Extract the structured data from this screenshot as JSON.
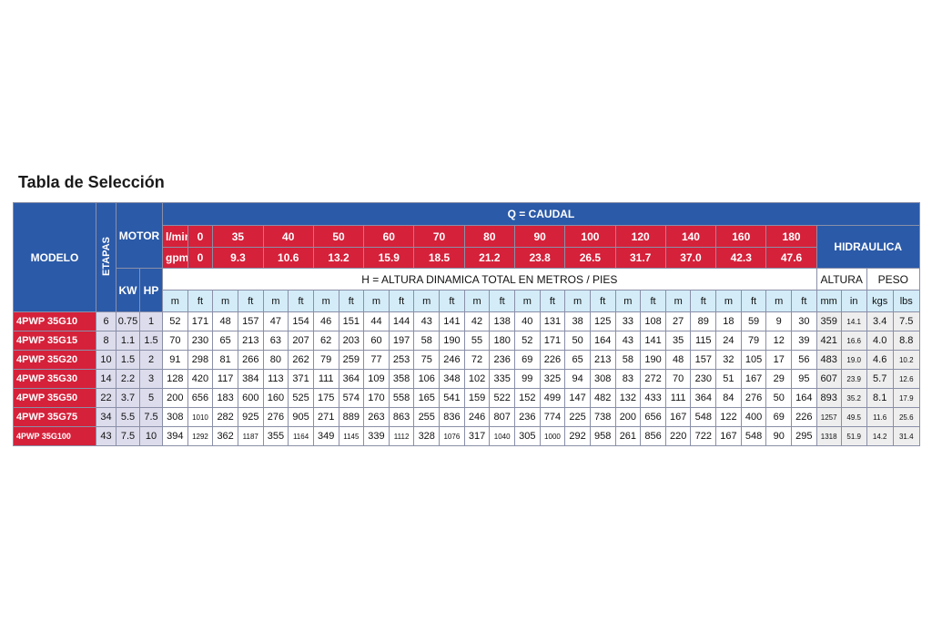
{
  "title": "Tabla de Selección",
  "header": {
    "modelo": "MODELO",
    "etapas": "ETAPAS",
    "motor": "MOTOR",
    "caudal": "Q = CAUDAL",
    "hidraulica": "HIDRAULICA",
    "lmin_label": "l/min",
    "lmin": [
      "0",
      "35",
      "40",
      "50",
      "60",
      "70",
      "80",
      "90",
      "100",
      "120",
      "140",
      "160",
      "180"
    ],
    "gpm_label": "gpm",
    "gpm": [
      "0",
      "9.3",
      "10.6",
      "13.2",
      "15.9",
      "18.5",
      "21.2",
      "23.8",
      "26.5",
      "31.7",
      "37.0",
      "42.3",
      "47.6"
    ],
    "kw": "KW",
    "hp": "HP",
    "altura_dinamica": "H = ALTURA DINAMICA TOTAL EN METROS / PIES",
    "altura": "ALTURA",
    "peso": "PESO",
    "units": [
      "m",
      "ft",
      "m",
      "ft",
      "m",
      "ft",
      "m",
      "ft",
      "m",
      "ft",
      "m",
      "ft",
      "m",
      "ft",
      "m",
      "ft",
      "m",
      "ft",
      "m",
      "ft",
      "m",
      "ft",
      "m",
      "ft",
      "m",
      "ft"
    ],
    "hyd_units": [
      "mm",
      "in",
      "kgs",
      "lbs"
    ]
  },
  "rows": [
    [
      "4PWP 35G10",
      "6",
      "0.75",
      "1",
      "52",
      "171",
      "48",
      "157",
      "47",
      "154",
      "46",
      "151",
      "44",
      "144",
      "43",
      "141",
      "42",
      "138",
      "40",
      "131",
      "38",
      "125",
      "33",
      "108",
      "27",
      "89",
      "18",
      "59",
      "9",
      "30",
      "359",
      "14.1",
      "3.4",
      "7.5"
    ],
    [
      "4PWP 35G15",
      "8",
      "1.1",
      "1.5",
      "70",
      "230",
      "65",
      "213",
      "63",
      "207",
      "62",
      "203",
      "60",
      "197",
      "58",
      "190",
      "55",
      "180",
      "52",
      "171",
      "50",
      "164",
      "43",
      "141",
      "35",
      "115",
      "24",
      "79",
      "12",
      "39",
      "421",
      "16.6",
      "4.0",
      "8.8"
    ],
    [
      "4PWP 35G20",
      "10",
      "1.5",
      "2",
      "91",
      "298",
      "81",
      "266",
      "80",
      "262",
      "79",
      "259",
      "77",
      "253",
      "75",
      "246",
      "72",
      "236",
      "69",
      "226",
      "65",
      "213",
      "58",
      "190",
      "48",
      "157",
      "32",
      "105",
      "17",
      "56",
      "483",
      "19.0",
      "4.6",
      "10.2"
    ],
    [
      "4PWP 35G30",
      "14",
      "2.2",
      "3",
      "128",
      "420",
      "117",
      "384",
      "113",
      "371",
      "111",
      "364",
      "109",
      "358",
      "106",
      "348",
      "102",
      "335",
      "99",
      "325",
      "94",
      "308",
      "83",
      "272",
      "70",
      "230",
      "51",
      "167",
      "29",
      "95",
      "607",
      "23.9",
      "5.7",
      "12.6"
    ],
    [
      "4PWP 35G50",
      "22",
      "3.7",
      "5",
      "200",
      "656",
      "183",
      "600",
      "160",
      "525",
      "175",
      "574",
      "170",
      "558",
      "165",
      "541",
      "159",
      "522",
      "152",
      "499",
      "147",
      "482",
      "132",
      "433",
      "111",
      "364",
      "84",
      "276",
      "50",
      "164",
      "893",
      "35.2",
      "8.1",
      "17.9"
    ],
    [
      "4PWP 35G75",
      "34",
      "5.5",
      "7.5",
      "308",
      "1010",
      "282",
      "925",
      "276",
      "905",
      "271",
      "889",
      "263",
      "863",
      "255",
      "836",
      "246",
      "807",
      "236",
      "774",
      "225",
      "738",
      "200",
      "656",
      "167",
      "548",
      "122",
      "400",
      "69",
      "226",
      "1257",
      "49.5",
      "11.6",
      "25.6"
    ],
    [
      "4PWP 35G100",
      "43",
      "7.5",
      "10",
      "394",
      "1292",
      "362",
      "1187",
      "355",
      "1164",
      "349",
      "1145",
      "339",
      "1112",
      "328",
      "1076",
      "317",
      "1040",
      "305",
      "1000",
      "292",
      "958",
      "261",
      "856",
      "220",
      "722",
      "167",
      "548",
      "90",
      "295",
      "1318",
      "51.9",
      "14.2",
      "31.4"
    ]
  ]
}
